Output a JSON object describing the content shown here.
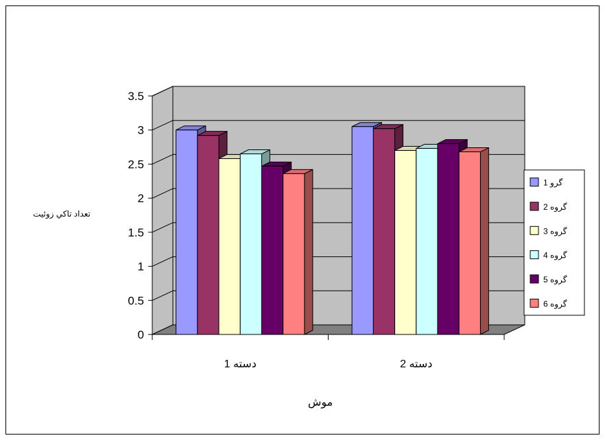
{
  "chart_data": {
    "type": "bar",
    "style": "3d-clustered-column",
    "categories": [
      "دسته 1",
      "دسته 2"
    ],
    "series": [
      {
        "name": "گرو 1",
        "values": [
          3.0,
          3.05
        ],
        "color": "#9999ff",
        "legend_label": "گرو 1"
      },
      {
        "name": "گروه 2",
        "values": [
          2.92,
          3.02
        ],
        "color": "#993366",
        "legend_label": "گروه 2"
      },
      {
        "name": "گروه 3",
        "values": [
          2.58,
          2.7
        ],
        "color": "#ffffcc",
        "legend_label": "گروه 3"
      },
      {
        "name": "گروه 4",
        "values": [
          2.65,
          2.73
        ],
        "color": "#ccffff",
        "legend_label": "گروه 4"
      },
      {
        "name": "گروه 5",
        "values": [
          2.47,
          2.8
        ],
        "color": "#660066",
        "legend_label": "گروه 5"
      },
      {
        "name": "گروه 6",
        "values": [
          2.36,
          2.68
        ],
        "color": "#ff8080",
        "legend_label": "گروه 6"
      }
    ],
    "yticks": [
      "0",
      "0.5",
      "1",
      "1.5",
      "2",
      "2.5",
      "3",
      "3.5"
    ],
    "ylim": [
      0,
      3.5
    ],
    "ylabel": "تعداد تاكي زوئيت",
    "xlabel": "موش",
    "grid": true,
    "wall_color": "#c0c0c0",
    "floor_color": "#808080",
    "legend_position": "right"
  }
}
